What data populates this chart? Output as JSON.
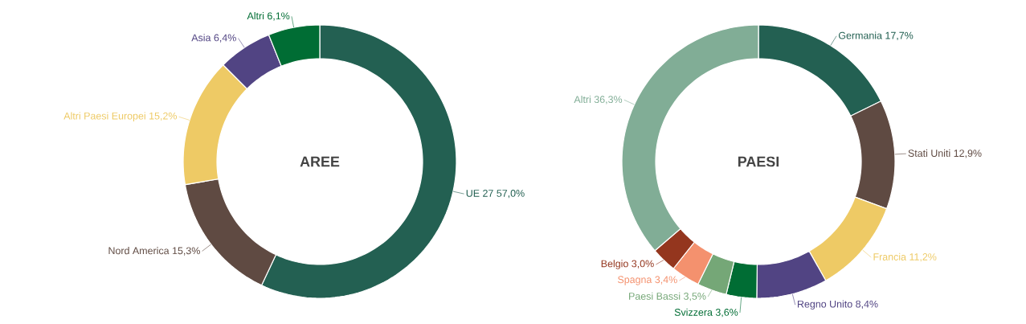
{
  "chart_data": [
    {
      "type": "donut",
      "title": "AREE",
      "categories": [
        "UE 27",
        "Nord America",
        "Altri Paesi Europei",
        "Asia",
        "Altri"
      ],
      "values": [
        57.0,
        15.3,
        15.2,
        6.4,
        6.1
      ],
      "colors": [
        "#236052",
        "#5f4a42",
        "#eeca65",
        "#514483",
        "#006d34"
      ],
      "value_labels": [
        "57,0%",
        "15,3%",
        "15,2%",
        "6,4%",
        "6,1%"
      ]
    },
    {
      "type": "donut",
      "title": "PAESI",
      "categories": [
        "Germania",
        "Stati Uniti",
        "Francia",
        "Regno Unito",
        "Svizzera",
        "Paesi Bassi",
        "Spagna",
        "Belgio",
        "Altri"
      ],
      "values": [
        17.7,
        12.9,
        11.2,
        8.4,
        3.6,
        3.5,
        3.4,
        3.0,
        36.3
      ],
      "colors": [
        "#236052",
        "#5f4a42",
        "#eeca65",
        "#514483",
        "#006d34",
        "#75a777",
        "#f4916e",
        "#94361e",
        "#81ad96"
      ],
      "value_labels": [
        "17,7%",
        "12,9%",
        "11,2%",
        "8,4%",
        "3,6%",
        "3,5%",
        "3,4%",
        "3,0%",
        "36,3%"
      ]
    }
  ]
}
